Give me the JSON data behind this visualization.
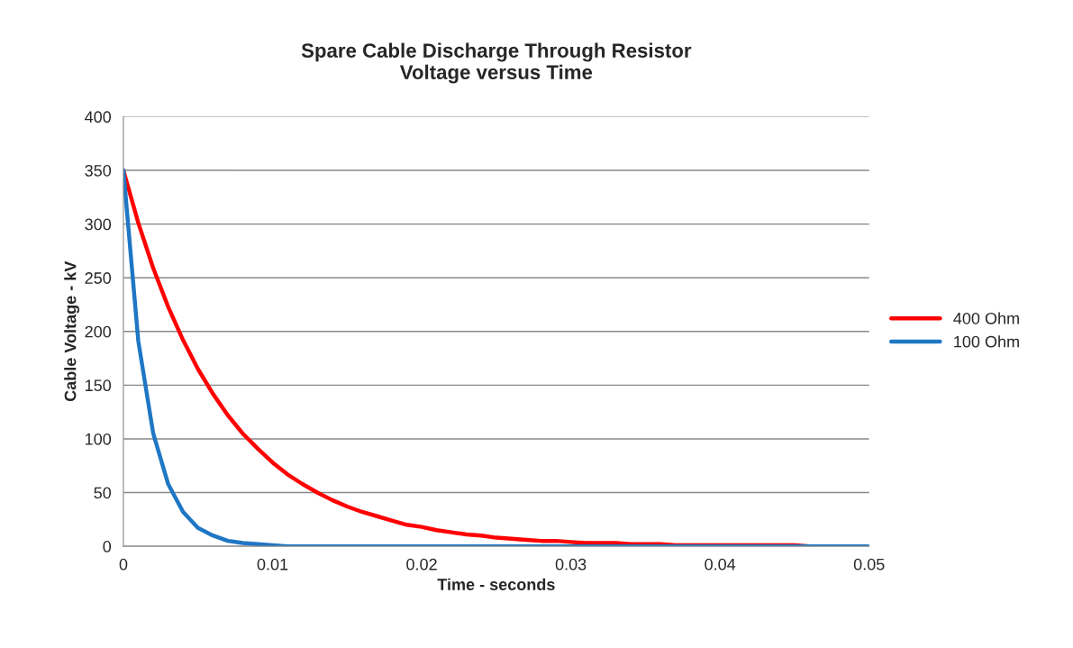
{
  "chart_data": {
    "type": "line",
    "title": "Spare Cable Discharge Through Resistor\nVoltage versus Time",
    "xlabel": "Time - seconds",
    "ylabel": "Cable Voltage - kV",
    "x": [
      0,
      0.001,
      0.002,
      0.003,
      0.004,
      0.005,
      0.006,
      0.007,
      0.008,
      0.009,
      0.01,
      0.011,
      0.012,
      0.013,
      0.014,
      0.015,
      0.016,
      0.017,
      0.018,
      0.019,
      0.02,
      0.021,
      0.022,
      0.023,
      0.024,
      0.025,
      0.026,
      0.027,
      0.028,
      0.029,
      0.03,
      0.031,
      0.032,
      0.033,
      0.034,
      0.035,
      0.036,
      0.037,
      0.038,
      0.039,
      0.04,
      0.041,
      0.042,
      0.043,
      0.044,
      0.045,
      0.046,
      0.047,
      0.048,
      0.049,
      0.05
    ],
    "series": [
      {
        "name": "400 Ohm",
        "color": "#ff0000",
        "values": [
          350,
          301,
          259,
          223,
          192,
          165,
          142,
          122,
          105,
          91,
          78,
          67,
          58,
          50,
          43,
          37,
          32,
          28,
          24,
          20,
          18,
          15,
          13,
          11,
          10,
          8,
          7,
          6,
          5,
          5,
          4,
          3,
          3,
          3,
          2,
          2,
          2,
          1,
          1,
          1,
          1,
          1,
          1,
          1,
          1,
          1,
          0,
          0,
          null,
          null,
          null
        ]
      },
      {
        "name": "100 Ohm",
        "color": "#1f77c4",
        "values": [
          350,
          191,
          105,
          58,
          32,
          17,
          10,
          5,
          3,
          2,
          1,
          0,
          0,
          0,
          0,
          0,
          0,
          0,
          0,
          0,
          0,
          0,
          0,
          0,
          0,
          0,
          0,
          0,
          0,
          0,
          0,
          0,
          0,
          0,
          0,
          0,
          0,
          0,
          0,
          0,
          0,
          0,
          0,
          0,
          0,
          0,
          0,
          0,
          0,
          0,
          0
        ]
      }
    ],
    "xlim": [
      0,
      0.05
    ],
    "xticks": [
      0,
      0.01,
      0.02,
      0.03,
      0.04,
      0.05
    ],
    "ylim": [
      0,
      400
    ],
    "yticks": [
      0,
      50,
      100,
      150,
      200,
      250,
      300,
      350,
      400
    ],
    "grid": "y",
    "legend": "right",
    "marker": "none",
    "line_style": "solid"
  }
}
